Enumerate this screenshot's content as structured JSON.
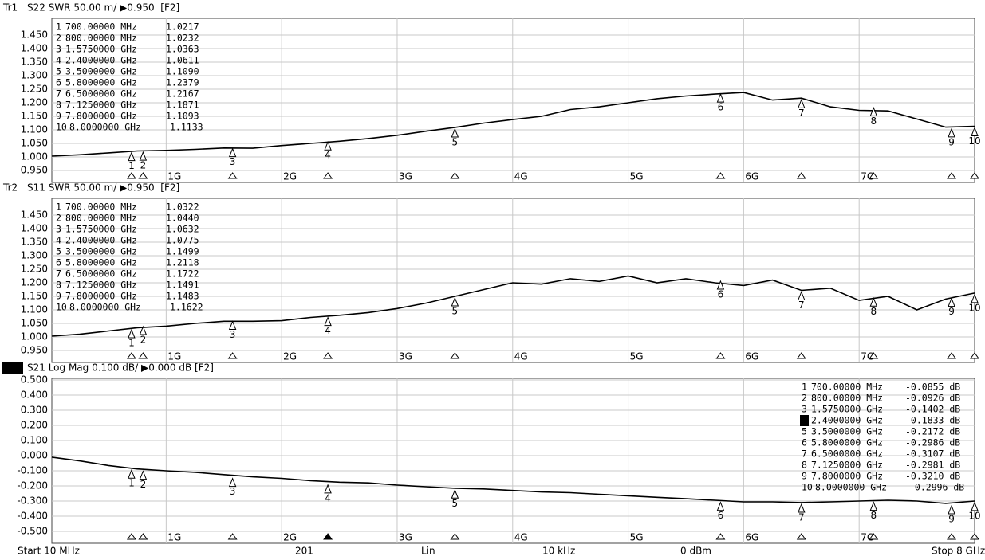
{
  "chart_data": [
    {
      "type": "line",
      "trace": "Tr1",
      "header": "S22 SWR 50.00 m/ ▶0.950  [F2]",
      "active": false,
      "color": "#000000",
      "grid": true,
      "xlim": [
        0.01,
        8
      ],
      "xticks": [
        {
          "value": 1,
          "label": "1G"
        },
        {
          "value": 2,
          "label": "2G"
        },
        {
          "value": 3,
          "label": "3G"
        },
        {
          "value": 4,
          "label": "4G"
        },
        {
          "value": 5,
          "label": "5G"
        },
        {
          "value": 6,
          "label": "6G"
        },
        {
          "value": 7,
          "label": "7G"
        }
      ],
      "ylim": [
        0.95,
        1.45
      ],
      "yticks": [
        {
          "value": 1.45,
          "label": "1.450"
        },
        {
          "value": 1.4,
          "label": "1.400"
        },
        {
          "value": 1.35,
          "label": "1.350"
        },
        {
          "value": 1.3,
          "label": "1.300"
        },
        {
          "value": 1.25,
          "label": "1.250"
        },
        {
          "value": 1.2,
          "label": "1.200"
        },
        {
          "value": 1.15,
          "label": "1.150"
        },
        {
          "value": 1.1,
          "label": "1.100"
        },
        {
          "value": 1.05,
          "label": "1.050"
        },
        {
          "value": 1.0,
          "label": "1.000"
        },
        {
          "value": 0.95,
          "label": "0.950"
        }
      ],
      "x": [
        0.01,
        0.25,
        0.5,
        0.75,
        1.0,
        1.25,
        1.5,
        1.75,
        2.0,
        2.25,
        2.5,
        2.75,
        3.0,
        3.25,
        3.5,
        3.75,
        4.0,
        4.25,
        4.5,
        4.75,
        5.0,
        5.25,
        5.5,
        5.75,
        6.0,
        6.25,
        6.5,
        6.75,
        7.0,
        7.25,
        7.5,
        7.75,
        8.0
      ],
      "values": [
        1.003,
        1.008,
        1.015,
        1.022,
        1.024,
        1.028,
        1.033,
        1.032,
        1.042,
        1.05,
        1.058,
        1.068,
        1.08,
        1.095,
        1.109,
        1.125,
        1.138,
        1.15,
        1.175,
        1.185,
        1.2,
        1.215,
        1.225,
        1.232,
        1.238,
        1.21,
        1.217,
        1.185,
        1.172,
        1.17,
        1.14,
        1.11,
        1.113
      ],
      "markers": [
        {
          "number": 1,
          "frequency": "700.00000 MHz",
          "x": 0.7,
          "value": 1.0217,
          "label": "1.0217"
        },
        {
          "number": 2,
          "frequency": "800.00000 MHz",
          "x": 0.8,
          "value": 1.0232,
          "label": "1.0232"
        },
        {
          "number": 3,
          "frequency": "1.5750000 GHz",
          "x": 1.575,
          "value": 1.0363,
          "label": "1.0363"
        },
        {
          "number": 4,
          "frequency": "2.4000000 GHz",
          "x": 2.4,
          "value": 1.0611,
          "label": "1.0611"
        },
        {
          "number": 5,
          "frequency": "3.5000000 GHz",
          "x": 3.5,
          "value": 1.109,
          "label": "1.1090"
        },
        {
          "number": 6,
          "frequency": "5.8000000 GHz",
          "x": 5.8,
          "value": 1.2379,
          "label": "1.2379"
        },
        {
          "number": 7,
          "frequency": "6.5000000 GHz",
          "x": 6.5,
          "value": 1.2167,
          "label": "1.2167"
        },
        {
          "number": 8,
          "frequency": "7.1250000 GHz",
          "x": 7.125,
          "value": 1.1871,
          "label": "1.1871"
        },
        {
          "number": 9,
          "frequency": "7.8000000 GHz",
          "x": 7.8,
          "value": 1.1093,
          "label": "1.1093"
        },
        {
          "number": 10,
          "frequency": "8.0000000 GHz",
          "x": 8,
          "value": 1.1133,
          "label": "1.1133"
        }
      ]
    },
    {
      "type": "line",
      "trace": "Tr2",
      "header": "S11 SWR 50.00 m/ ▶0.950  [F2]",
      "active": false,
      "color": "#000000",
      "grid": true,
      "xlim": [
        0.01,
        8
      ],
      "xticks": [
        {
          "value": 1,
          "label": "1G"
        },
        {
          "value": 2,
          "label": "2G"
        },
        {
          "value": 3,
          "label": "3G"
        },
        {
          "value": 4,
          "label": "4G"
        },
        {
          "value": 5,
          "label": "5G"
        },
        {
          "value": 6,
          "label": "6G"
        },
        {
          "value": 7,
          "label": "7G"
        }
      ],
      "ylim": [
        0.95,
        1.45
      ],
      "yticks": [
        {
          "value": 1.45,
          "label": "1.450"
        },
        {
          "value": 1.4,
          "label": "1.400"
        },
        {
          "value": 1.35,
          "label": "1.350"
        },
        {
          "value": 1.3,
          "label": "1.300"
        },
        {
          "value": 1.25,
          "label": "1.250"
        },
        {
          "value": 1.2,
          "label": "1.200"
        },
        {
          "value": 1.15,
          "label": "1.150"
        },
        {
          "value": 1.1,
          "label": "1.100"
        },
        {
          "value": 1.05,
          "label": "1.050"
        },
        {
          "value": 1.0,
          "label": "1.000"
        },
        {
          "value": 0.95,
          "label": "0.950"
        }
      ],
      "x": [
        0.01,
        0.25,
        0.5,
        0.75,
        1.0,
        1.25,
        1.5,
        1.75,
        2.0,
        2.25,
        2.5,
        2.75,
        3.0,
        3.25,
        3.5,
        3.75,
        4.0,
        4.25,
        4.5,
        4.75,
        5.0,
        5.25,
        5.5,
        5.75,
        6.0,
        6.25,
        6.5,
        6.75,
        7.0,
        7.25,
        7.5,
        7.75,
        8.0
      ],
      "values": [
        1.003,
        1.01,
        1.022,
        1.034,
        1.04,
        1.05,
        1.058,
        1.058,
        1.06,
        1.072,
        1.08,
        1.09,
        1.105,
        1.125,
        1.15,
        1.175,
        1.2,
        1.195,
        1.215,
        1.205,
        1.225,
        1.2,
        1.215,
        1.2,
        1.19,
        1.21,
        1.172,
        1.18,
        1.135,
        1.15,
        1.1,
        1.14,
        1.162
      ],
      "markers": [
        {
          "number": 1,
          "frequency": "700.00000 MHz",
          "x": 0.7,
          "value": 1.0322,
          "label": "1.0322"
        },
        {
          "number": 2,
          "frequency": "800.00000 MHz",
          "x": 0.8,
          "value": 1.044,
          "label": "1.0440"
        },
        {
          "number": 3,
          "frequency": "1.5750000 GHz",
          "x": 1.575,
          "value": 1.0632,
          "label": "1.0632"
        },
        {
          "number": 4,
          "frequency": "2.4000000 GHz",
          "x": 2.4,
          "value": 1.0775,
          "label": "1.0775"
        },
        {
          "number": 5,
          "frequency": "3.5000000 GHz",
          "x": 3.5,
          "value": 1.1499,
          "label": "1.1499"
        },
        {
          "number": 6,
          "frequency": "5.8000000 GHz",
          "x": 5.8,
          "value": 1.2118,
          "label": "1.2118"
        },
        {
          "number": 7,
          "frequency": "6.5000000 GHz",
          "x": 6.5,
          "value": 1.1722,
          "label": "1.1722"
        },
        {
          "number": 8,
          "frequency": "7.1250000 GHz",
          "x": 7.125,
          "value": 1.1491,
          "label": "1.1491"
        },
        {
          "number": 9,
          "frequency": "7.8000000 GHz",
          "x": 7.8,
          "value": 1.1483,
          "label": "1.1483"
        },
        {
          "number": 10,
          "frequency": "8.0000000 GHz",
          "x": 8,
          "value": 1.1622,
          "label": "1.1622"
        }
      ]
    },
    {
      "type": "line",
      "trace": "Tr3",
      "header": "S21 Log Mag 0.100 dB/ ▶0.000 dB [F2]",
      "active": true,
      "color": "#000000",
      "grid": true,
      "xlim": [
        0.01,
        8
      ],
      "xticks": [
        {
          "value": 1,
          "label": "1G"
        },
        {
          "value": 2,
          "label": "2G"
        },
        {
          "value": 3,
          "label": "3G"
        },
        {
          "value": 4,
          "label": "4G"
        },
        {
          "value": 5,
          "label": "5G"
        },
        {
          "value": 6,
          "label": "6G"
        },
        {
          "value": 7,
          "label": "7G"
        }
      ],
      "ylim": [
        -0.5,
        0.5
      ],
      "yticks": [
        {
          "value": 0.5,
          "label": "0.500"
        },
        {
          "value": 0.4,
          "label": "0.400"
        },
        {
          "value": 0.3,
          "label": "0.300"
        },
        {
          "value": 0.2,
          "label": "0.200"
        },
        {
          "value": 0.1,
          "label": "0.100"
        },
        {
          "value": 0,
          "label": "0.000"
        },
        {
          "value": -0.1,
          "label": "-0.100"
        },
        {
          "value": -0.2,
          "label": "-0.200"
        },
        {
          "value": -0.3,
          "label": "-0.300"
        },
        {
          "value": -0.4,
          "label": "-0.400"
        },
        {
          "value": -0.5,
          "label": "-0.500"
        }
      ],
      "x": [
        0.01,
        0.25,
        0.5,
        0.75,
        1.0,
        1.25,
        1.5,
        1.75,
        2.0,
        2.25,
        2.5,
        2.75,
        3.0,
        3.25,
        3.5,
        3.75,
        4.0,
        4.25,
        4.5,
        4.75,
        5.0,
        5.25,
        5.5,
        5.75,
        6.0,
        6.25,
        6.5,
        6.75,
        7.0,
        7.25,
        7.5,
        7.75,
        8.0
      ],
      "values": [
        -0.01,
        -0.035,
        -0.065,
        -0.088,
        -0.1,
        -0.11,
        -0.125,
        -0.14,
        -0.15,
        -0.165,
        -0.175,
        -0.18,
        -0.195,
        -0.205,
        -0.215,
        -0.22,
        -0.23,
        -0.24,
        -0.245,
        -0.255,
        -0.265,
        -0.275,
        -0.285,
        -0.295,
        -0.305,
        -0.305,
        -0.31,
        -0.305,
        -0.3,
        -0.295,
        -0.3,
        -0.315,
        -0.3
      ],
      "markers": [
        {
          "number": 1,
          "frequency": "700.00000 MHz",
          "x": 0.7,
          "value": -0.0855,
          "label": "-0.0855 dB"
        },
        {
          "number": 2,
          "frequency": "800.00000 MHz",
          "x": 0.8,
          "value": -0.0926,
          "label": "-0.0926 dB"
        },
        {
          "number": 3,
          "frequency": "1.5750000 GHz",
          "x": 1.575,
          "value": -0.1402,
          "label": "-0.1402 dB"
        },
        {
          "number": 4,
          "frequency": "2.4000000 GHz",
          "x": 2.4,
          "value": -0.1833,
          "label": "-0.1833 dB",
          "active": true
        },
        {
          "number": 5,
          "frequency": "3.5000000 GHz",
          "x": 3.5,
          "value": -0.2172,
          "label": "-0.2172 dB"
        },
        {
          "number": 6,
          "frequency": "5.8000000 GHz",
          "x": 5.8,
          "value": -0.2986,
          "label": "-0.2986 dB"
        },
        {
          "number": 7,
          "frequency": "6.5000000 GHz",
          "x": 6.5,
          "value": -0.3107,
          "label": "-0.3107 dB"
        },
        {
          "number": 8,
          "frequency": "7.1250000 GHz",
          "x": 7.125,
          "value": -0.2981,
          "label": "-0.2981 dB"
        },
        {
          "number": 9,
          "frequency": "7.8000000 GHz",
          "x": 7.8,
          "value": -0.321,
          "label": "-0.3210 dB"
        },
        {
          "number": 10,
          "frequency": "8.0000000 GHz",
          "x": 8,
          "value": -0.2996,
          "label": "-0.2996 dB"
        }
      ]
    }
  ],
  "status_bar": [
    "Start 10 MHz",
    "201",
    "Lin",
    "10 kHz",
    "0 dBm",
    "Stop 8 GHz"
  ]
}
